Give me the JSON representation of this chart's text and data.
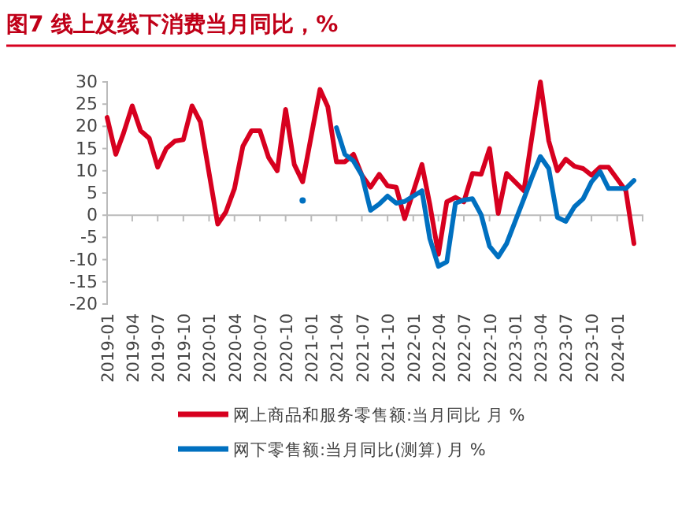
{
  "chart_data": {
    "type": "line",
    "title": "图7  线上及线下消费当月同比，%",
    "xlim": [
      "2019-01",
      "2024-04"
    ],
    "xticks": [
      "2019-01",
      "2019-04",
      "2019-07",
      "2019-10",
      "2020-01",
      "2020-04",
      "2020-07",
      "2020-10",
      "2021-01",
      "2021-04",
      "2021-07",
      "2021-10",
      "2022-01",
      "2022-04",
      "2022-07",
      "2022-10",
      "2023-01",
      "2023-04",
      "2023-07",
      "2023-10",
      "2024-01"
    ],
    "ylim": [
      -20,
      30
    ],
    "yticks": [
      -20,
      -15,
      -10,
      -5,
      0,
      5,
      10,
      15,
      20,
      25,
      30
    ],
    "grid": false,
    "legend": "bottom",
    "marker": "none",
    "line_style": "solid",
    "series": [
      {
        "name": "网上商品和服务零售额:当月同比 月 %",
        "color": "#d7001f",
        "x": [
          "2019-01",
          "2019-02",
          "2019-03",
          "2019-04",
          "2019-05",
          "2019-06",
          "2019-07",
          "2019-08",
          "2019-09",
          "2019-10",
          "2019-11",
          "2019-12",
          "2020-02",
          "2020-03",
          "2020-04",
          "2020-05",
          "2020-06",
          "2020-07",
          "2020-08",
          "2020-09",
          "2020-10",
          "2020-11",
          "2020-12",
          "2021-02",
          "2021-03",
          "2021-04",
          "2021-05",
          "2021-06",
          "2021-07",
          "2021-08",
          "2021-09",
          "2021-10",
          "2021-11",
          "2021-12",
          "2022-02",
          "2022-03",
          "2022-04",
          "2022-05",
          "2022-06",
          "2022-07",
          "2022-08",
          "2022-09",
          "2022-10",
          "2022-11",
          "2022-12",
          "2023-02",
          "2023-03",
          "2023-04",
          "2023-05",
          "2023-06",
          "2023-07",
          "2023-08",
          "2023-09",
          "2023-10",
          "2023-11",
          "2023-12",
          "2024-02",
          "2024-03"
        ],
        "values": [
          22,
          13.7,
          18.5,
          24.6,
          19,
          17.3,
          10.8,
          15,
          16.7,
          17,
          24.6,
          21,
          -2,
          0.7,
          6,
          15.5,
          19,
          19,
          13,
          10,
          23.8,
          11.4,
          7.5,
          28.3,
          24.4,
          12,
          12,
          13.7,
          9,
          6.3,
          9.2,
          6.6,
          6.3,
          -0.8,
          11.4,
          2.5,
          -8.8,
          3,
          4,
          3,
          9.4,
          9.2,
          15,
          0.4,
          9.4,
          5.5,
          17.3,
          30,
          16.7,
          10,
          12.6,
          11,
          10.5,
          9,
          10.8,
          10.8,
          5.5,
          -6.4
        ]
      },
      {
        "name": "网下零售额:当月同比(测算) 月 %",
        "color": "#0070c0",
        "x": [
          "2020-12",
          "2021-02",
          "2021-04",
          "2021-05",
          "2021-06",
          "2021-07",
          "2021-08",
          "2021-09",
          "2021-10",
          "2021-11",
          "2021-12",
          "2022-02",
          "2022-03",
          "2022-04",
          "2022-05",
          "2022-06",
          "2022-07",
          "2022-08",
          "2022-09",
          "2022-10",
          "2022-11",
          "2022-12",
          "2023-02",
          "2023-03",
          "2023-04",
          "2023-05",
          "2023-06",
          "2023-07",
          "2023-08",
          "2023-09",
          "2023-10",
          "2023-11",
          "2023-12",
          "2024-02",
          "2024-03"
        ],
        "values": [
          3.3,
          null,
          19.7,
          13.7,
          12.2,
          9,
          1.1,
          2.5,
          4.3,
          2.7,
          3.1,
          5.5,
          -5.2,
          -11.5,
          -10.5,
          2.7,
          3.4,
          3.7,
          0.1,
          -7,
          -9.4,
          -6.4,
          3.7,
          8.4,
          13.2,
          10.5,
          -0.5,
          -1.4,
          1.9,
          3.7,
          7.5,
          9.8,
          6,
          6,
          7.8
        ]
      }
    ]
  }
}
